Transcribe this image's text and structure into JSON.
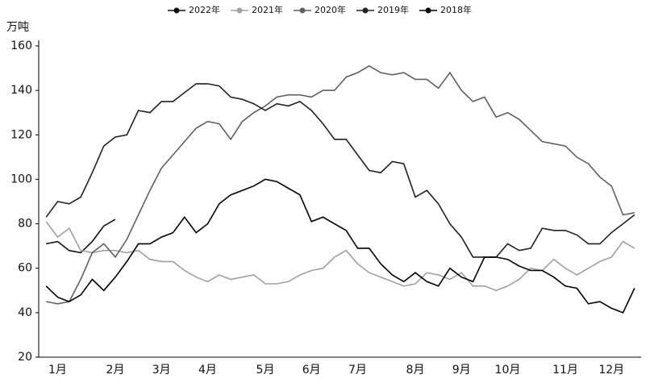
{
  "chart_data": {
    "type": "line",
    "y_label": "万吨",
    "categories": [
      null,
      "1月",
      null,
      null,
      null,
      null,
      "2月",
      null,
      null,
      null,
      "3月",
      null,
      null,
      null,
      "4月",
      null,
      null,
      null,
      null,
      "5月",
      null,
      null,
      null,
      "6月",
      null,
      null,
      null,
      "7月",
      null,
      null,
      null,
      null,
      "8月",
      null,
      null,
      null,
      "9月",
      null,
      null,
      null,
      "10月",
      null,
      null,
      null,
      null,
      "11月",
      null,
      null,
      null,
      "12月",
      null,
      null
    ],
    "ylim": [
      20,
      160
    ],
    "yticks": [
      20,
      40,
      60,
      80,
      100,
      120,
      140,
      160
    ],
    "grid": false,
    "series": [
      {
        "name": "2022年",
        "color": "#111111",
        "values": [
          71,
          72,
          68,
          67,
          72,
          79,
          82,
          null,
          null,
          null,
          null,
          null,
          null,
          null,
          null,
          null,
          null,
          null,
          null,
          null,
          null,
          null,
          null,
          null,
          null,
          null,
          null,
          null,
          null,
          null,
          null,
          null,
          null,
          null,
          null,
          null,
          null,
          null,
          null,
          null,
          null,
          null,
          null,
          null,
          null,
          null,
          null,
          null,
          null,
          null,
          null,
          null
        ]
      },
      {
        "name": "2021年",
        "color": "#a0a0a0",
        "values": [
          81,
          74,
          78,
          68,
          67,
          68,
          68,
          67,
          68,
          64,
          63,
          63,
          59,
          56,
          54,
          57,
          55,
          56,
          57,
          53,
          53,
          54,
          57,
          59,
          60,
          65,
          68,
          62,
          58,
          56,
          54,
          52,
          53,
          58,
          57,
          55,
          58,
          52,
          52,
          50,
          52,
          55,
          60,
          59,
          64,
          60,
          57,
          60,
          63,
          65,
          72,
          69
        ]
      },
      {
        "name": "2020年",
        "color": "#606060",
        "values": [
          45,
          44,
          45,
          55,
          67,
          71,
          65,
          73,
          84,
          95,
          105,
          111,
          117,
          123,
          126,
          125,
          118,
          126,
          130,
          133,
          137,
          138,
          138,
          137,
          140,
          140,
          146,
          148,
          151,
          148,
          147,
          148,
          145,
          145,
          141,
          148,
          140,
          135,
          137,
          128,
          130,
          127,
          122,
          117,
          116,
          115,
          110,
          107,
          101,
          97,
          84,
          85
        ]
      },
      {
        "name": "2019年",
        "color": "#222222",
        "values": [
          83,
          90,
          89,
          92,
          103,
          115,
          119,
          120,
          131,
          130,
          135,
          135,
          139,
          143,
          143,
          142,
          137,
          136,
          134,
          131,
          134,
          133,
          135,
          131,
          125,
          118,
          118,
          111,
          104,
          103,
          108,
          107,
          92,
          95,
          89,
          80,
          74,
          65,
          65,
          65,
          71,
          68,
          69,
          78,
          77,
          77,
          75,
          71,
          71,
          76,
          80,
          84
        ]
      },
      {
        "name": "2018年",
        "color": "#000000",
        "values": [
          52,
          47,
          45,
          48,
          55,
          50,
          56,
          63,
          71,
          71,
          74,
          76,
          83,
          76,
          80,
          89,
          93,
          95,
          97,
          100,
          99,
          96,
          93,
          81,
          83,
          80,
          77,
          69,
          69,
          62,
          57,
          54,
          58,
          54,
          52,
          60,
          56,
          54,
          65,
          65,
          64,
          61,
          59,
          59,
          56,
          52,
          51,
          44,
          45,
          42,
          40,
          51
        ]
      }
    ]
  }
}
